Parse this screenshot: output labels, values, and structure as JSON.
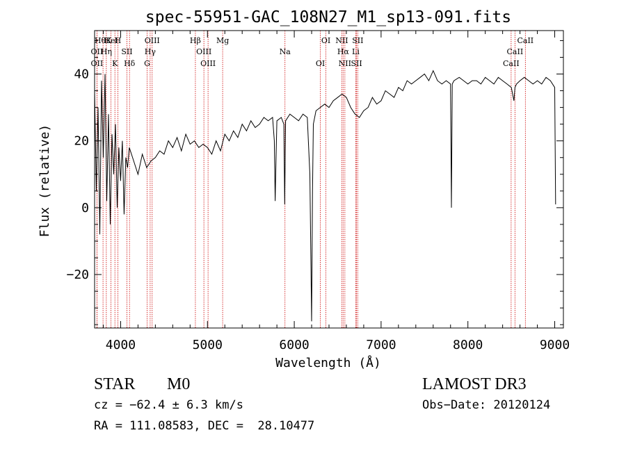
{
  "chart_data": {
    "type": "line",
    "title": "spec-55951-GAC_108N27_M1_sp13-091.fits",
    "xlabel": "Wavelength (Å)",
    "ylabel": "Flux (relative)",
    "xlim": [
      3700,
      9100
    ],
    "ylim": [
      -36,
      53
    ],
    "x_ticks": [
      4000,
      5000,
      6000,
      7000,
      8000,
      9000
    ],
    "x_tick_labels": [
      "4000",
      "5000",
      "6000",
      "7000",
      "8000",
      "9000"
    ],
    "y_ticks": [
      -20,
      0,
      20,
      40
    ],
    "y_tick_labels": [
      "−20",
      "0",
      "20",
      "40"
    ],
    "series": [
      {
        "name": "spectrum",
        "x": [
          3700,
          3720,
          3740,
          3760,
          3780,
          3800,
          3820,
          3840,
          3860,
          3880,
          3900,
          3920,
          3940,
          3960,
          3980,
          4000,
          4020,
          4040,
          4060,
          4080,
          4100,
          4150,
          4200,
          4250,
          4300,
          4350,
          4400,
          4450,
          4500,
          4550,
          4600,
          4650,
          4700,
          4750,
          4800,
          4850,
          4900,
          4950,
          5000,
          5050,
          5100,
          5150,
          5200,
          5250,
          5300,
          5350,
          5400,
          5450,
          5500,
          5550,
          5600,
          5650,
          5700,
          5750,
          5770,
          5780,
          5790,
          5800,
          5850,
          5880,
          5890,
          5900,
          5950,
          6000,
          6050,
          6100,
          6150,
          6180,
          6200,
          6210,
          6220,
          6250,
          6300,
          6350,
          6400,
          6450,
          6500,
          6550,
          6600,
          6650,
          6700,
          6750,
          6800,
          6850,
          6900,
          6950,
          7000,
          7050,
          7100,
          7150,
          7200,
          7250,
          7300,
          7350,
          7400,
          7450,
          7500,
          7550,
          7600,
          7650,
          7700,
          7750,
          7800,
          7810,
          7820,
          7840,
          7900,
          7950,
          8000,
          8050,
          8100,
          8150,
          8200,
          8250,
          8300,
          8350,
          8400,
          8450,
          8500,
          8530,
          8542,
          8560,
          8600,
          8650,
          8700,
          8750,
          8800,
          8850,
          8900,
          8950,
          9000,
          9010
        ],
        "y": [
          35,
          5,
          30,
          -8,
          38,
          15,
          40,
          2,
          28,
          -5,
          22,
          10,
          25,
          0,
          18,
          8,
          20,
          -2,
          15,
          12,
          18,
          14,
          10,
          16,
          12,
          14,
          15,
          17,
          16,
          20,
          18,
          21,
          17,
          22,
          19,
          20,
          18,
          19,
          18,
          16,
          20,
          17,
          22,
          20,
          23,
          21,
          25,
          23,
          26,
          24,
          25,
          27,
          26,
          27,
          20,
          2,
          15,
          26,
          27,
          25,
          1,
          26,
          28,
          27,
          26,
          28,
          27,
          10,
          -34,
          5,
          25,
          29,
          30,
          31,
          30,
          32,
          33,
          34,
          33,
          30,
          28,
          27,
          29,
          30,
          33,
          31,
          32,
          35,
          34,
          33,
          36,
          35,
          38,
          37,
          38,
          39,
          40,
          38,
          41,
          38,
          37,
          38,
          37,
          0,
          37,
          38,
          39,
          38,
          37,
          38,
          38,
          37,
          39,
          38,
          37,
          39,
          38,
          37,
          36,
          32,
          36,
          37,
          38,
          39,
          38,
          37,
          38,
          37,
          39,
          38,
          36,
          1
        ]
      }
    ],
    "lines": [
      {
        "label": "HθK",
        "x": 3797
      },
      {
        "label": "OII",
        "x": 3727
      },
      {
        "label": "OII",
        "x": 3727
      },
      {
        "label": "HeI",
        "x": 3889
      },
      {
        "label": "Hη",
        "x": 3835
      },
      {
        "label": "K",
        "x": 3934
      },
      {
        "label": "H",
        "x": 3968
      },
      {
        "label": "SII",
        "x": 4072
      },
      {
        "label": "Hδ",
        "x": 4102
      },
      {
        "label": "OIII",
        "x": 4363
      },
      {
        "label": "Hγ",
        "x": 4340
      },
      {
        "label": "G",
        "x": 4305
      },
      {
        "label": "Hβ",
        "x": 4861
      },
      {
        "label": "OIII",
        "x": 4959
      },
      {
        "label": "OIII",
        "x": 5007
      },
      {
        "label": "Mg",
        "x": 5175
      },
      {
        "label": "Na",
        "x": 5893
      },
      {
        "label": "OI",
        "x": 6300
      },
      {
        "label": "OI",
        "x": 6364
      },
      {
        "label": "Hα",
        "x": 6563
      },
      {
        "label": "SII",
        "x": 6717
      },
      {
        "label": "NII",
        "x": 6548
      },
      {
        "label": "Li",
        "x": 6708
      },
      {
        "label": "NII",
        "x": 6583
      },
      {
        "label": "SII",
        "x": 6731
      },
      {
        "label": "CaII",
        "x": 8542
      },
      {
        "label": "CaII",
        "x": 8498
      },
      {
        "label": "CaII",
        "x": 8662
      }
    ]
  },
  "info": {
    "object_class": "STAR",
    "subclass": "M0",
    "survey": "LAMOST DR3",
    "cz": "cz = −62.4 ± 6.3 km/s",
    "obs_date": "Obs−Date: 20120124",
    "coords": "RA = 111.08583, DEC =  28.10477"
  },
  "colors": {
    "spectrum": "#000000",
    "line_marker": "#cc0000",
    "axis": "#000000"
  }
}
